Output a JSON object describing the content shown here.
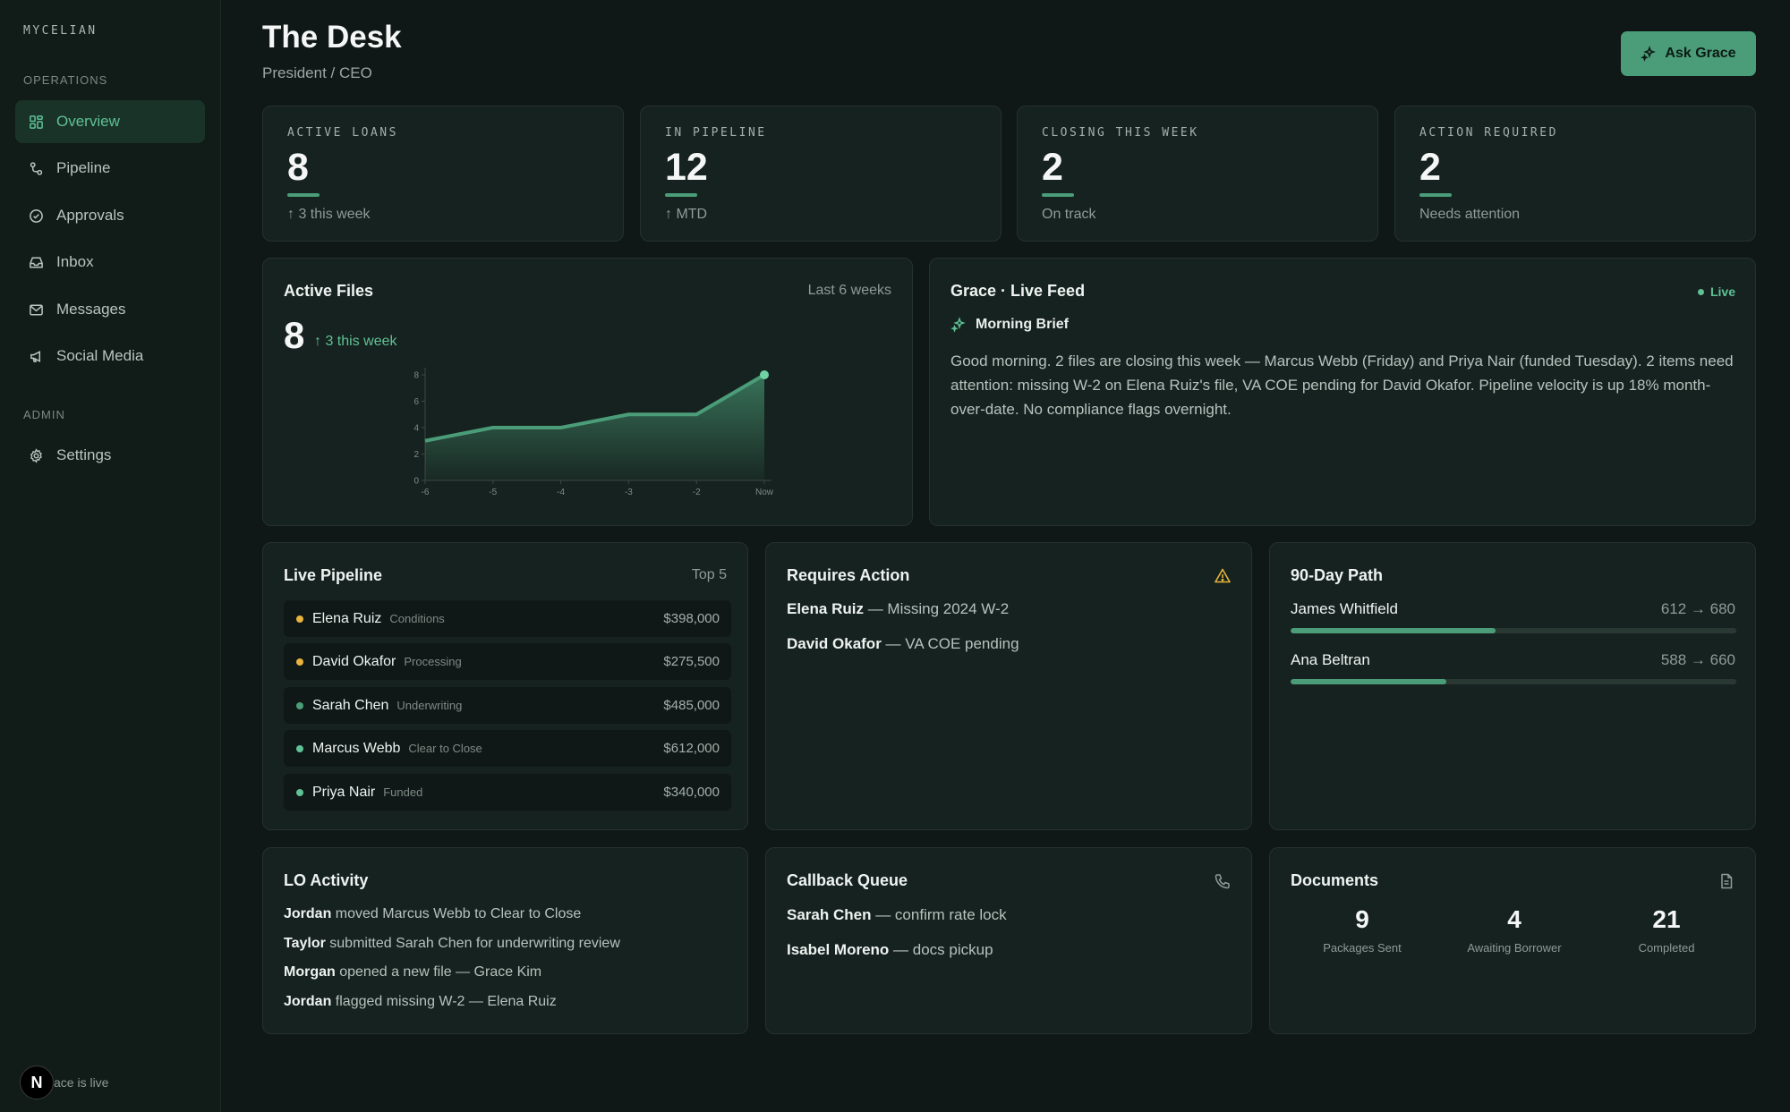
{
  "sidebar": {
    "brand": "MYCELIAN",
    "operations_label": "OPERATIONS",
    "admin_label": "ADMIN",
    "items": [
      {
        "label": "Overview",
        "icon": "grid-icon"
      },
      {
        "label": "Pipeline",
        "icon": "route-icon"
      },
      {
        "label": "Approvals",
        "icon": "check-circle-icon"
      },
      {
        "label": "Inbox",
        "icon": "inbox-icon"
      },
      {
        "label": "Messages",
        "icon": "mail-icon"
      },
      {
        "label": "Social Media",
        "icon": "megaphone-icon"
      }
    ],
    "settings": {
      "label": "Settings",
      "icon": "gear-icon"
    },
    "footer_badge": "N",
    "footer_text": "ace is live"
  },
  "header": {
    "title": "The Desk",
    "subtitle": "President / CEO",
    "ask_button": "Ask Grace"
  },
  "stats": [
    {
      "label": "ACTIVE LOANS",
      "value": "8",
      "sub": "↑ 3 this week"
    },
    {
      "label": "IN PIPELINE",
      "value": "12",
      "sub": "↑ MTD"
    },
    {
      "label": "CLOSING THIS WEEK",
      "value": "2",
      "sub": "On track"
    },
    {
      "label": "ACTION REQUIRED",
      "value": "2",
      "sub": "Needs attention"
    }
  ],
  "active_files": {
    "title": "Active Files",
    "range": "Last 6 weeks",
    "value": "8",
    "delta": "↑ 3 this week"
  },
  "chart_data": {
    "type": "area",
    "x": [
      "-6",
      "-5",
      "-4",
      "-3",
      "-2",
      "Now"
    ],
    "values": [
      3,
      4,
      4,
      5,
      5,
      8
    ],
    "yticks": [
      "0",
      "2",
      "4",
      "6",
      "8"
    ],
    "ylim": [
      0,
      8
    ],
    "color": "#4a9d78"
  },
  "feed": {
    "title": "Grace · Live Feed",
    "live": "Live",
    "brief_title": "Morning Brief",
    "brief_text": "Good morning. 2 files are closing this week — Marcus Webb (Friday) and Priya Nair (funded Tuesday). 2 items need attention: missing W-2 on Elena Ruiz's file, VA COE pending for David Okafor. Pipeline velocity is up 18% month-over-date. No compliance flags overnight."
  },
  "pipeline": {
    "title": "Live Pipeline",
    "meta": "Top 5",
    "rows": [
      {
        "name": "Elena Ruiz",
        "stage": "Conditions",
        "amount": "$398,000",
        "color": "#e7b53e"
      },
      {
        "name": "David Okafor",
        "stage": "Processing",
        "amount": "$275,500",
        "color": "#e7b53e"
      },
      {
        "name": "Sarah Chen",
        "stage": "Underwriting",
        "amount": "$485,000",
        "color": "#4a9d78"
      },
      {
        "name": "Marcus Webb",
        "stage": "Clear to Close",
        "amount": "$612,000",
        "color": "#5fc196"
      },
      {
        "name": "Priya Nair",
        "stage": "Funded",
        "amount": "$340,000",
        "color": "#5fc196"
      }
    ]
  },
  "requires_action": {
    "title": "Requires Action",
    "items": [
      {
        "name": "Elena Ruiz",
        "text": " — Missing 2024 W-2"
      },
      {
        "name": "David Okafor",
        "text": " — VA COE pending"
      }
    ]
  },
  "path90": {
    "title": "90-Day Path",
    "items": [
      {
        "name": "James Whitfield",
        "score": "612 → 680",
        "progress": 0.46
      },
      {
        "name": "Ana Beltran",
        "score": "588 → 660",
        "progress": 0.35
      }
    ]
  },
  "lo_activity": {
    "title": "LO Activity",
    "items": [
      {
        "who": "Jordan",
        "text": " moved Marcus Webb to Clear to Close"
      },
      {
        "who": "Taylor",
        "text": " submitted Sarah Chen for underwriting review"
      },
      {
        "who": "Morgan",
        "text": " opened a new file — Grace Kim"
      },
      {
        "who": "Jordan",
        "text": " flagged missing W-2 — Elena Ruiz"
      }
    ]
  },
  "callback": {
    "title": "Callback Queue",
    "items": [
      {
        "name": "Sarah Chen",
        "text": " — confirm rate lock"
      },
      {
        "name": "Isabel Moreno",
        "text": " — docs pickup"
      }
    ]
  },
  "documents": {
    "title": "Documents",
    "stats": [
      {
        "value": "9",
        "label": "Packages Sent"
      },
      {
        "value": "4",
        "label": "Awaiting Borrower"
      },
      {
        "value": "21",
        "label": "Completed"
      }
    ]
  }
}
